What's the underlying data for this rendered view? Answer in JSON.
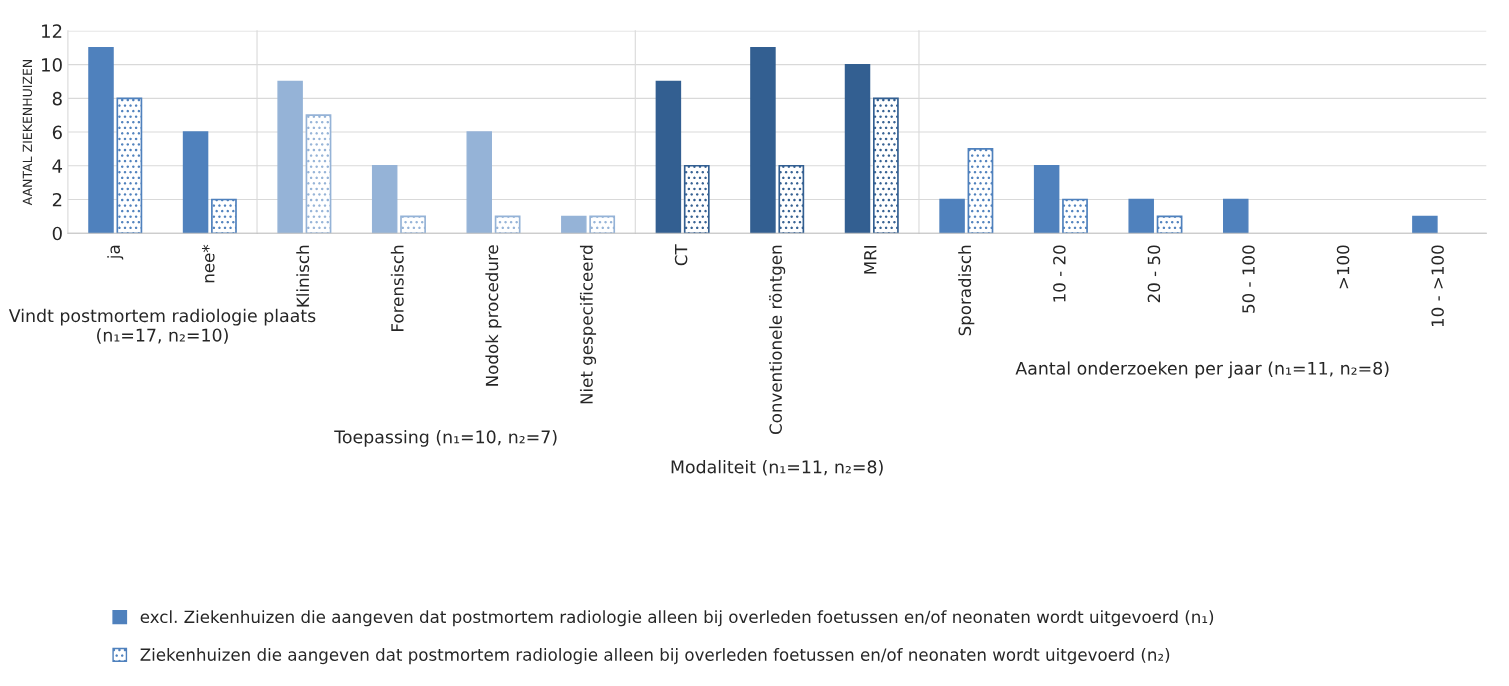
{
  "chart_data": [
    {
      "type": "bar",
      "xlabel": "Vindt postmortem radiologie plaats (n₁=17, n₂=10)",
      "ylabel": "AANTAL ZIEKENHUIZEN",
      "categories": [
        "ja",
        "nee*"
      ],
      "ylim": [
        0,
        12
      ],
      "yticks": [
        0,
        2,
        4,
        6,
        8,
        10,
        12
      ],
      "grid": "y",
      "legend": "bottom",
      "series": [
        {
          "name": "excl. Ziekenhuizen die aangeven dat postmortem radiologie alleen bij overleden foetussen en/of neonaten wordt uitgevoerd (n₁)",
          "color": "#4f81bd",
          "values": [
            11,
            6
          ]
        },
        {
          "name": "Ziekenhuizen die aangeven dat postmortem radiologie alleen bij overleden foetussen en/of neonaten wordt uitgevoerd (n₂)",
          "color": "#4f81bd",
          "values": [
            8,
            2
          ]
        }
      ]
    },
    {
      "type": "bar",
      "xlabel": "Toepassing (n₁=10, n₂=7)",
      "categories": [
        "Klinisch",
        "Forensisch",
        "Nodok procedure",
        "Niet gespecificeerd"
      ],
      "ylim": [
        0,
        12
      ],
      "yticks": [
        0,
        2,
        4,
        6,
        8,
        10,
        12
      ],
      "grid": "y",
      "tick_labels": "x",
      "series": [
        {
          "color": "#95b3d7",
          "values": [
            9,
            4,
            6,
            1
          ]
        },
        {
          "color": "#95b3d7",
          "values": [
            7,
            1,
            1,
            1
          ]
        }
      ]
    },
    {
      "type": "bar",
      "xlabel": "Modaliteit (n₁=11, n₂=8)",
      "categories": [
        "CT",
        "Conventionele röntgen",
        "MRI"
      ],
      "ylim": [
        0,
        12
      ],
      "yticks": [
        0,
        2,
        4,
        6,
        8,
        10,
        12
      ],
      "grid": "y",
      "tick_labels": "x",
      "series": [
        {
          "color": "#335f91",
          "values": [
            9,
            11,
            10
          ]
        },
        {
          "color": "#335f91",
          "values": [
            4,
            4,
            8
          ]
        }
      ]
    },
    {
      "type": "bar",
      "xlabel": "Aantal onderzoeken per jaar (n₁=11, n₂=8)",
      "categories": [
        "Sporadisch",
        "10 - 20",
        "20 - 50",
        "50 - 100",
        ">100",
        "10 - >100"
      ],
      "ylim": [
        0,
        12
      ],
      "yticks": [
        0,
        2,
        4,
        6,
        8,
        10,
        12
      ],
      "grid": "y",
      "tick_labels": "x",
      "series": [
        {
          "color": "#4f81bd",
          "values": [
            2,
            4,
            2,
            2,
            null,
            1
          ]
        },
        {
          "color": "#4f81bd",
          "values": [
            5,
            2,
            1,
            null,
            null,
            null
          ]
        }
      ]
    }
  ]
}
